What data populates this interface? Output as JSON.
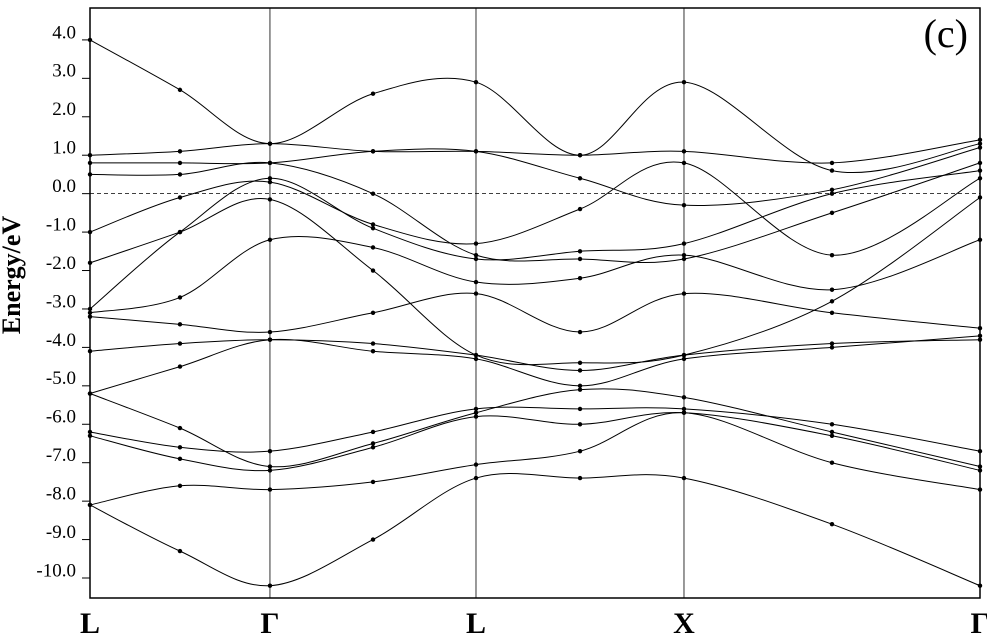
{
  "chart_data": {
    "type": "line",
    "y_label": "Energy/eV",
    "annotation": "(c)",
    "xlim": [
      0,
      1
    ],
    "xticks": [
      {
        "value": 0,
        "label": "L"
      },
      {
        "value": 0.2022,
        "label": "Γ"
      },
      {
        "value": 0.4337,
        "label": "L"
      },
      {
        "value": 0.6674,
        "label": "X"
      },
      {
        "value": 1,
        "label": "Γ"
      }
    ],
    "ylim": [
      -10.52,
      4.83
    ],
    "yticks": [
      {
        "value": 4,
        "label": "4.0"
      },
      {
        "value": 3,
        "label": "3.0"
      },
      {
        "value": 2,
        "label": "2.0"
      },
      {
        "value": 1,
        "label": "1.0"
      },
      {
        "value": 0,
        "label": "0.0"
      },
      {
        "value": -1,
        "label": "-1.0"
      },
      {
        "value": -2,
        "label": "-2.0"
      },
      {
        "value": -3,
        "label": "-3.0"
      },
      {
        "value": -4,
        "label": "-4.0"
      },
      {
        "value": -5,
        "label": "-5.0"
      },
      {
        "value": -6,
        "label": "-6.0"
      },
      {
        "value": -7,
        "label": "-7.0"
      },
      {
        "value": -8,
        "label": "-8.0"
      },
      {
        "value": -9,
        "label": "-9.0"
      },
      {
        "value": -10,
        "label": "-10.0"
      }
    ],
    "fermi_level": 0,
    "line_color": "#000000",
    "x": [
      0,
      0.1011,
      0.2022,
      0.318,
      0.4337,
      0.5506,
      0.6674,
      0.8337,
      1
    ],
    "series": [
      {
        "values": [
          -8.1,
          -9.3,
          -10.2,
          -9.0,
          -7.4,
          -7.4,
          -7.4,
          -8.6,
          -10.2
        ]
      },
      {
        "values": [
          -8.1,
          -7.6,
          -7.7,
          -7.5,
          -7.05,
          -6.7,
          -5.7,
          -7.0,
          -7.7
        ]
      },
      {
        "values": [
          -6.3,
          -6.9,
          -7.2,
          -6.6,
          -5.8,
          -6.0,
          -5.7,
          -6.3,
          -7.2
        ]
      },
      {
        "values": [
          -6.2,
          -6.6,
          -6.7,
          -6.2,
          -5.6,
          -5.6,
          -5.6,
          -6.0,
          -6.7
        ]
      },
      {
        "values": [
          -5.2,
          -6.1,
          -7.1,
          -6.5,
          -5.7,
          -5.1,
          -5.3,
          -6.2,
          -7.1
        ]
      },
      {
        "values": [
          -5.2,
          -4.5,
          -3.8,
          -4.1,
          -4.3,
          -5.0,
          -4.3,
          -4.0,
          -3.7
        ]
      },
      {
        "values": [
          -4.1,
          -3.9,
          -3.8,
          -3.9,
          -4.2,
          -4.6,
          -4.2,
          -3.9,
          -3.8
        ]
      },
      {
        "values": [
          -3.2,
          -3.4,
          -3.6,
          -3.1,
          -2.6,
          -3.6,
          -2.6,
          -3.1,
          -3.5
        ]
      },
      {
        "values": [
          -3.1,
          -2.7,
          -1.2,
          -1.4,
          -2.3,
          -2.2,
          -1.6,
          -2.5,
          -1.2
        ]
      },
      {
        "values": [
          -1.8,
          -1.0,
          -0.15,
          -2.0,
          -4.2,
          -4.4,
          -4.2,
          -2.8,
          -0.1
        ]
      },
      {
        "values": [
          -1.0,
          -0.1,
          0.3,
          -0.8,
          -1.3,
          -0.4,
          0.8,
          -1.6,
          0.4
        ]
      },
      {
        "values": [
          -3.0,
          -1.0,
          0.4,
          -0.9,
          -1.7,
          -1.5,
          -1.3,
          0.0,
          0.6
        ]
      },
      {
        "values": [
          0.5,
          0.5,
          0.8,
          0.0,
          -1.6,
          -1.7,
          -1.7,
          -0.5,
          0.8
        ]
      },
      {
        "values": [
          0.8,
          0.8,
          0.8,
          1.1,
          1.1,
          0.4,
          -0.3,
          0.1,
          1.2
        ]
      },
      {
        "values": [
          1.0,
          1.1,
          1.3,
          1.1,
          1.1,
          1.0,
          1.1,
          0.8,
          1.4
        ]
      },
      {
        "values": [
          4.0,
          2.7,
          1.3,
          2.6,
          2.9,
          1.0,
          2.9,
          0.6,
          1.3
        ]
      }
    ]
  }
}
